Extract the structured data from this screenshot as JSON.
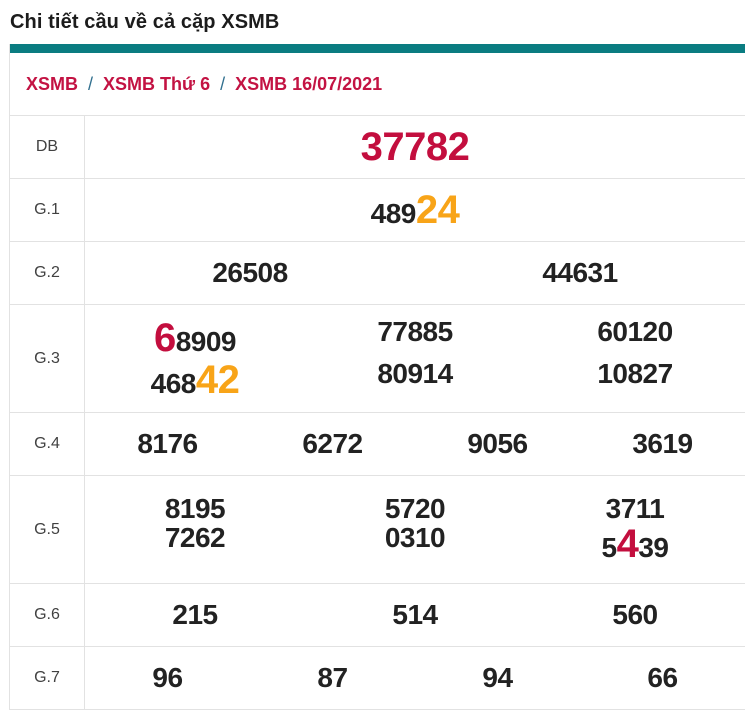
{
  "page_title": "Chi tiết cầu về cả cặp XSMB",
  "breadcrumb": {
    "separator": "/",
    "items": [
      "XSMB",
      "XSMB Thứ 6",
      "XSMB 16/07/2021"
    ]
  },
  "colors": {
    "teal_bar": "#0a7c81",
    "crimson": "#c30e3e",
    "orange": "#f8a418",
    "breadcrumb_link": "#c31343",
    "breadcrumb_separator": "#31708f",
    "number_text": "#222222",
    "border": "#e2e2e2"
  },
  "prize_table": {
    "rows": [
      {
        "label": "DB",
        "lines": [
          [
            [
              {
                "t": "37782",
                "hl": "crimson"
              }
            ]
          ]
        ]
      },
      {
        "label": "G.1",
        "lines": [
          [
            [
              {
                "t": "489"
              },
              {
                "t": "24",
                "hl": "orange"
              }
            ]
          ]
        ]
      },
      {
        "label": "G.2",
        "lines": [
          [
            [
              {
                "t": "26508"
              }
            ],
            [
              {
                "t": "44631"
              }
            ]
          ]
        ]
      },
      {
        "label": "G.3",
        "lines": [
          [
            [
              {
                "t": "6",
                "hl": "crimson"
              },
              {
                "t": "8909"
              }
            ],
            [
              {
                "t": "77885"
              }
            ],
            [
              {
                "t": "60120"
              }
            ]
          ],
          [
            [
              {
                "t": "468"
              },
              {
                "t": "42",
                "hl": "orange"
              }
            ],
            [
              {
                "t": "80914"
              }
            ],
            [
              {
                "t": "10827"
              }
            ]
          ]
        ]
      },
      {
        "label": "G.4",
        "lines": [
          [
            [
              {
                "t": "8176"
              }
            ],
            [
              {
                "t": "6272"
              }
            ],
            [
              {
                "t": "9056"
              }
            ],
            [
              {
                "t": "3619"
              }
            ]
          ]
        ]
      },
      {
        "label": "G.5",
        "lines": [
          [
            [
              {
                "t": "8195"
              }
            ],
            [
              {
                "t": "5720"
              }
            ],
            [
              {
                "t": "3711"
              }
            ]
          ],
          [
            [
              {
                "t": "7262"
              }
            ],
            [
              {
                "t": "0310"
              }
            ],
            [
              {
                "t": "5"
              },
              {
                "t": "4",
                "hl": "crimson"
              },
              {
                "t": "39"
              }
            ]
          ]
        ]
      },
      {
        "label": "G.6",
        "lines": [
          [
            [
              {
                "t": "215"
              }
            ],
            [
              {
                "t": "514"
              }
            ],
            [
              {
                "t": "560"
              }
            ]
          ]
        ]
      },
      {
        "label": "G.7",
        "lines": [
          [
            [
              {
                "t": "96"
              }
            ],
            [
              {
                "t": "87"
              }
            ],
            [
              {
                "t": "94"
              }
            ],
            [
              {
                "t": "66"
              }
            ]
          ]
        ]
      }
    ]
  }
}
